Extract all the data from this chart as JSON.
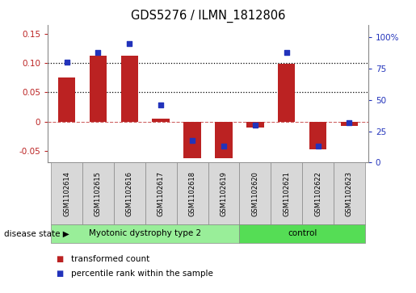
{
  "title": "GDS5276 / ILMN_1812806",
  "samples": [
    "GSM1102614",
    "GSM1102615",
    "GSM1102616",
    "GSM1102617",
    "GSM1102618",
    "GSM1102619",
    "GSM1102620",
    "GSM1102621",
    "GSM1102622",
    "GSM1102623"
  ],
  "bar_values": [
    0.075,
    0.112,
    0.112,
    0.005,
    -0.063,
    -0.063,
    -0.01,
    0.099,
    -0.048,
    -0.008
  ],
  "scatter_values": [
    80,
    88,
    95,
    46,
    18,
    13,
    30,
    88,
    13,
    32
  ],
  "bar_color": "#BB2222",
  "scatter_color": "#2233BB",
  "ylim_left": [
    -0.07,
    0.165
  ],
  "ylim_right": [
    0,
    110
  ],
  "yticks_left": [
    -0.05,
    0.0,
    0.05,
    0.1,
    0.15
  ],
  "ytick_labels_left": [
    "-0.05",
    "0",
    "0.05",
    "0.10",
    "0.15"
  ],
  "yticks_right": [
    0,
    25,
    50,
    75,
    100
  ],
  "ytick_labels_right": [
    "0",
    "25",
    "50",
    "75",
    "100%"
  ],
  "hlines": [
    0.05,
    0.1
  ],
  "disease_groups": [
    {
      "label": "Myotonic dystrophy type 2",
      "start": 0,
      "end": 6,
      "color": "#99EE99"
    },
    {
      "label": "control",
      "start": 6,
      "end": 10,
      "color": "#55DD55"
    }
  ],
  "disease_state_label": "disease state",
  "legend_bar_label": "transformed count",
  "legend_scatter_label": "percentile rank within the sample",
  "bar_width": 0.55,
  "background_color": "#FFFFFF",
  "separator_color": "#999999"
}
